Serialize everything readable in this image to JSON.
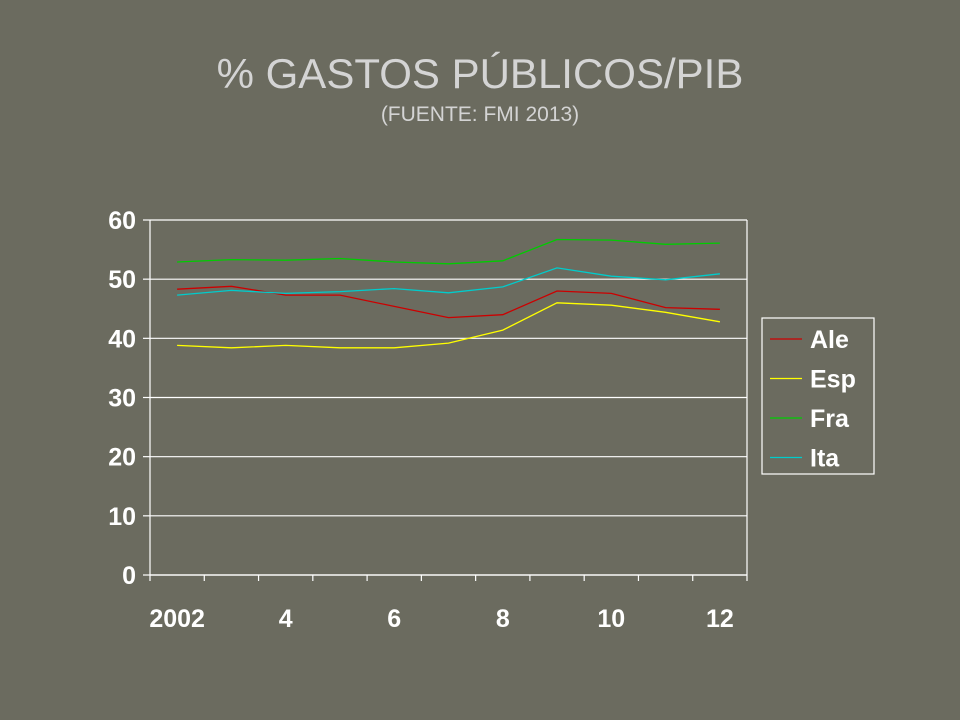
{
  "title": "% GASTOS PÚBLICOS/PIB",
  "subtitle": "(FUENTE: FMI 2013)",
  "chart_data": {
    "type": "line",
    "title": "% GASTOS PÚBLICOS/PIB",
    "subtitle": "(FUENTE: FMI 2013)",
    "x": [
      2002,
      2003,
      2004,
      2005,
      2006,
      2007,
      2008,
      2009,
      2010,
      2011,
      2012
    ],
    "x_tick_labels": [
      "2002",
      "4",
      "6",
      "8",
      "10",
      "12"
    ],
    "y_tick_labels": [
      "0",
      "10",
      "20",
      "30",
      "40",
      "50",
      "60"
    ],
    "ylim": [
      0,
      60
    ],
    "grid": "horizontal",
    "legend_position": "right",
    "series": [
      {
        "name": "Ale",
        "color": "#cc0000",
        "values": [
          48.3,
          48.8,
          47.3,
          47.3,
          45.4,
          43.5,
          44.0,
          48.0,
          47.6,
          45.2,
          44.9
        ]
      },
      {
        "name": "Esp",
        "color": "#ffff00",
        "values": [
          38.8,
          38.4,
          38.8,
          38.4,
          38.4,
          39.2,
          41.4,
          46.0,
          45.6,
          44.4,
          42.8
        ]
      },
      {
        "name": "Fra",
        "color": "#00cc00",
        "values": [
          52.9,
          53.3,
          53.2,
          53.5,
          52.9,
          52.6,
          53.1,
          56.7,
          56.6,
          55.9,
          56.1
        ]
      },
      {
        "name": "Ita",
        "color": "#00cccc",
        "values": [
          47.3,
          48.1,
          47.6,
          47.9,
          48.4,
          47.7,
          48.7,
          51.9,
          50.5,
          49.9,
          50.9
        ]
      }
    ]
  }
}
